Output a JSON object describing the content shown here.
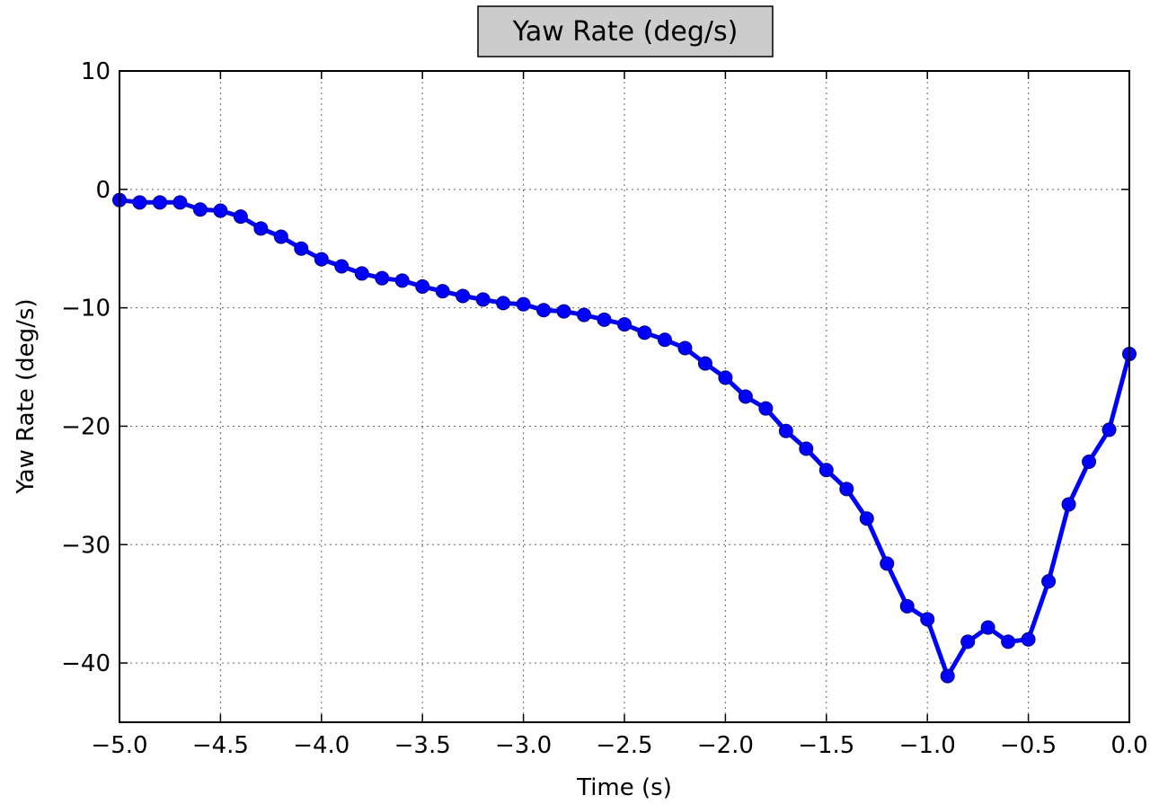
{
  "chart_data": {
    "type": "line",
    "title": "Yaw Rate (deg/s)",
    "xlabel": "Time (s)",
    "ylabel": "Yaw Rate (deg/s)",
    "xlim": [
      -5.0,
      0.0
    ],
    "ylim": [
      -45,
      10
    ],
    "grid": true,
    "x_ticks": [
      -5.0,
      -4.5,
      -4.0,
      -3.5,
      -3.0,
      -2.5,
      -2.0,
      -1.5,
      -1.0,
      -0.5,
      0.0
    ],
    "x_tick_labels": [
      "−5.0",
      "−4.5",
      "−4.0",
      "−3.5",
      "−3.0",
      "−2.5",
      "−2.0",
      "−1.5",
      "−1.0",
      "−0.5",
      "0.0"
    ],
    "y_ticks": [
      10,
      0,
      -10,
      -20,
      -30,
      -40
    ],
    "y_tick_labels": [
      "10",
      "0",
      "−10",
      "−20",
      "−30",
      "−40"
    ],
    "series": [
      {
        "color": "#0000ff",
        "marker": "circle",
        "x": [
          -5.0,
          -4.9,
          -4.8,
          -4.7,
          -4.6,
          -4.5,
          -4.4,
          -4.3,
          -4.2,
          -4.1,
          -4.0,
          -3.9,
          -3.8,
          -3.7,
          -3.6,
          -3.5,
          -3.4,
          -3.3,
          -3.2,
          -3.1,
          -3.0,
          -2.9,
          -2.8,
          -2.7,
          -2.6,
          -2.5,
          -2.4,
          -2.3,
          -2.2,
          -2.1,
          -2.0,
          -1.9,
          -1.8,
          -1.7,
          -1.6,
          -1.5,
          -1.4,
          -1.3,
          -1.2,
          -1.1,
          -1.0,
          -0.9,
          -0.8,
          -0.7,
          -0.6,
          -0.5,
          -0.4,
          -0.3,
          -0.2,
          -0.1,
          0.0
        ],
        "y": [
          -0.9,
          -1.1,
          -1.1,
          -1.1,
          -1.7,
          -1.8,
          -2.3,
          -3.3,
          -4.0,
          -5.0,
          -5.9,
          -6.5,
          -7.1,
          -7.5,
          -7.7,
          -8.2,
          -8.6,
          -9.0,
          -9.3,
          -9.6,
          -9.7,
          -10.2,
          -10.3,
          -10.6,
          -11.0,
          -11.4,
          -12.1,
          -12.7,
          -13.4,
          -14.7,
          -15.9,
          -17.5,
          -18.5,
          -20.4,
          -21.9,
          -23.7,
          -25.3,
          -27.8,
          -31.6,
          -35.2,
          -36.3,
          -41.1,
          -38.2,
          -37.0,
          -38.2,
          -38.0,
          -33.1,
          -26.6,
          -23.0,
          -20.3,
          -13.9
        ]
      }
    ]
  }
}
